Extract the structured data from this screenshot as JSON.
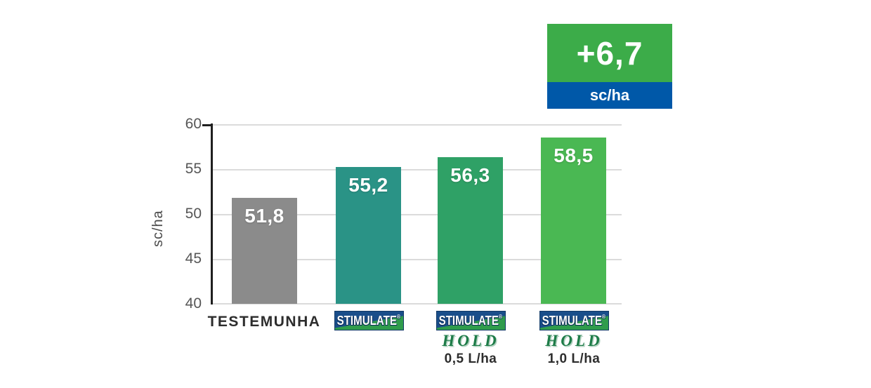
{
  "chart_data": {
    "type": "bar",
    "title": "",
    "xlabel": "",
    "ylabel": "sc/ha",
    "ylim": [
      40,
      60
    ],
    "yticks": [
      60,
      55,
      50,
      45,
      40
    ],
    "grid": true,
    "legend_position": "none",
    "categories": [
      "TESTEMUNHA",
      "STIMULATE®",
      "STIMULATE® HOLD 0,5 L/ha",
      "STIMULATE® HOLD 1,0 L/ha"
    ],
    "values": [
      51.8,
      55.2,
      56.3,
      58.5
    ],
    "bar_colors": [
      "#8B8B8B",
      "#2A9386",
      "#2FA166",
      "#4AB853"
    ]
  },
  "callout": {
    "value": "+6,7",
    "unit": "sc/ha",
    "value_bg": "#3CAC49",
    "unit_bg": "#0058A8"
  },
  "y_axis": {
    "label": "sc/ha",
    "ticks": [
      "60",
      "55",
      "50",
      "45",
      "40"
    ]
  },
  "bars": [
    {
      "value_label": "51,8"
    },
    {
      "value_label": "55,2"
    },
    {
      "value_label": "56,3"
    },
    {
      "value_label": "58,5"
    }
  ],
  "x_labels": {
    "control": "TESTEMUNHA",
    "brand": "STIMULATE",
    "brand_reg": "®",
    "sub_brand": "HOLD",
    "dose_05": "0,5 L/ha",
    "dose_10": "1,0 L/ha"
  }
}
